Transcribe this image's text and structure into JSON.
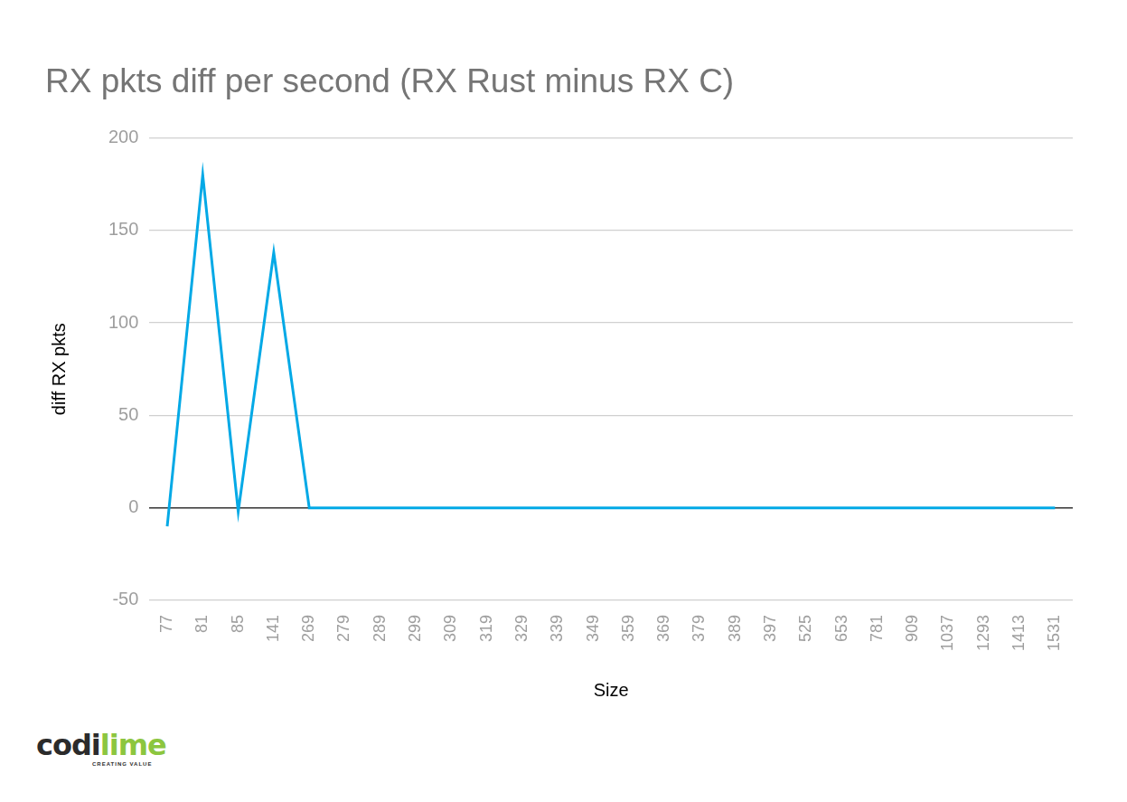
{
  "chart_data": {
    "type": "line",
    "title": "RX pkts diff per second (RX Rust minus RX C)",
    "x_label": "Size",
    "y_label": "diff RX pkts",
    "categories": [
      "77",
      "81",
      "85",
      "141",
      "269",
      "279",
      "289",
      "299",
      "309",
      "319",
      "329",
      "339",
      "349",
      "359",
      "369",
      "379",
      "389",
      "397",
      "525",
      "653",
      "781",
      "909",
      "1037",
      "1293",
      "1413",
      "1531"
    ],
    "values": [
      -10,
      180,
      -2,
      138,
      0,
      0,
      0,
      0,
      0,
      0,
      0,
      0,
      0,
      0,
      0,
      0,
      0,
      0,
      0,
      0,
      0,
      0,
      0,
      0,
      0,
      0
    ],
    "color": "#03a9e6",
    "ylim": [
      -50,
      200
    ],
    "yticks": [
      -50,
      0,
      50,
      100,
      150,
      200
    ],
    "grid": true
  },
  "logo": {
    "first": "codi",
    "second": "lime",
    "tagline": "CREATING VALUE"
  }
}
